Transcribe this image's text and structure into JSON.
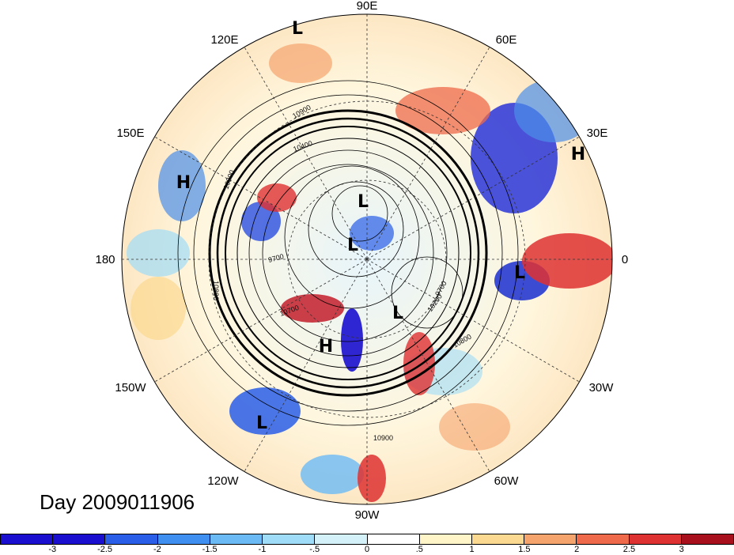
{
  "title": "Day 2009011906",
  "longitude_labels": [
    "90E",
    "60E",
    "30E",
    "0",
    "30W",
    "60W",
    "90W",
    "120W",
    "150W",
    "180",
    "150E",
    "120E"
  ],
  "pressure_centers": [
    "L",
    "H",
    "H",
    "L",
    "L",
    "L",
    "H",
    "L",
    "L"
  ],
  "contour_labels": [
    "10900",
    "10400",
    "10800",
    "9700",
    "10700",
    "10200",
    "10800",
    "10900",
    "10900",
    "9700"
  ],
  "colorbar": {
    "ticks": [
      "-3",
      "-2.5",
      "-2",
      "-1.5",
      "-1",
      "-.5",
      "0",
      ".5",
      "1",
      "1.5",
      "2",
      "2.5",
      "3"
    ],
    "colors": [
      "#1a0fcf",
      "#2a5ee8",
      "#3f8ff0",
      "#6bbaf5",
      "#9fdcf7",
      "#d4f1fa",
      "#ffffff",
      "#fff5c8",
      "#fbd990",
      "#f5a46d",
      "#ee6a4a",
      "#de3131",
      "#a8101e"
    ]
  }
}
